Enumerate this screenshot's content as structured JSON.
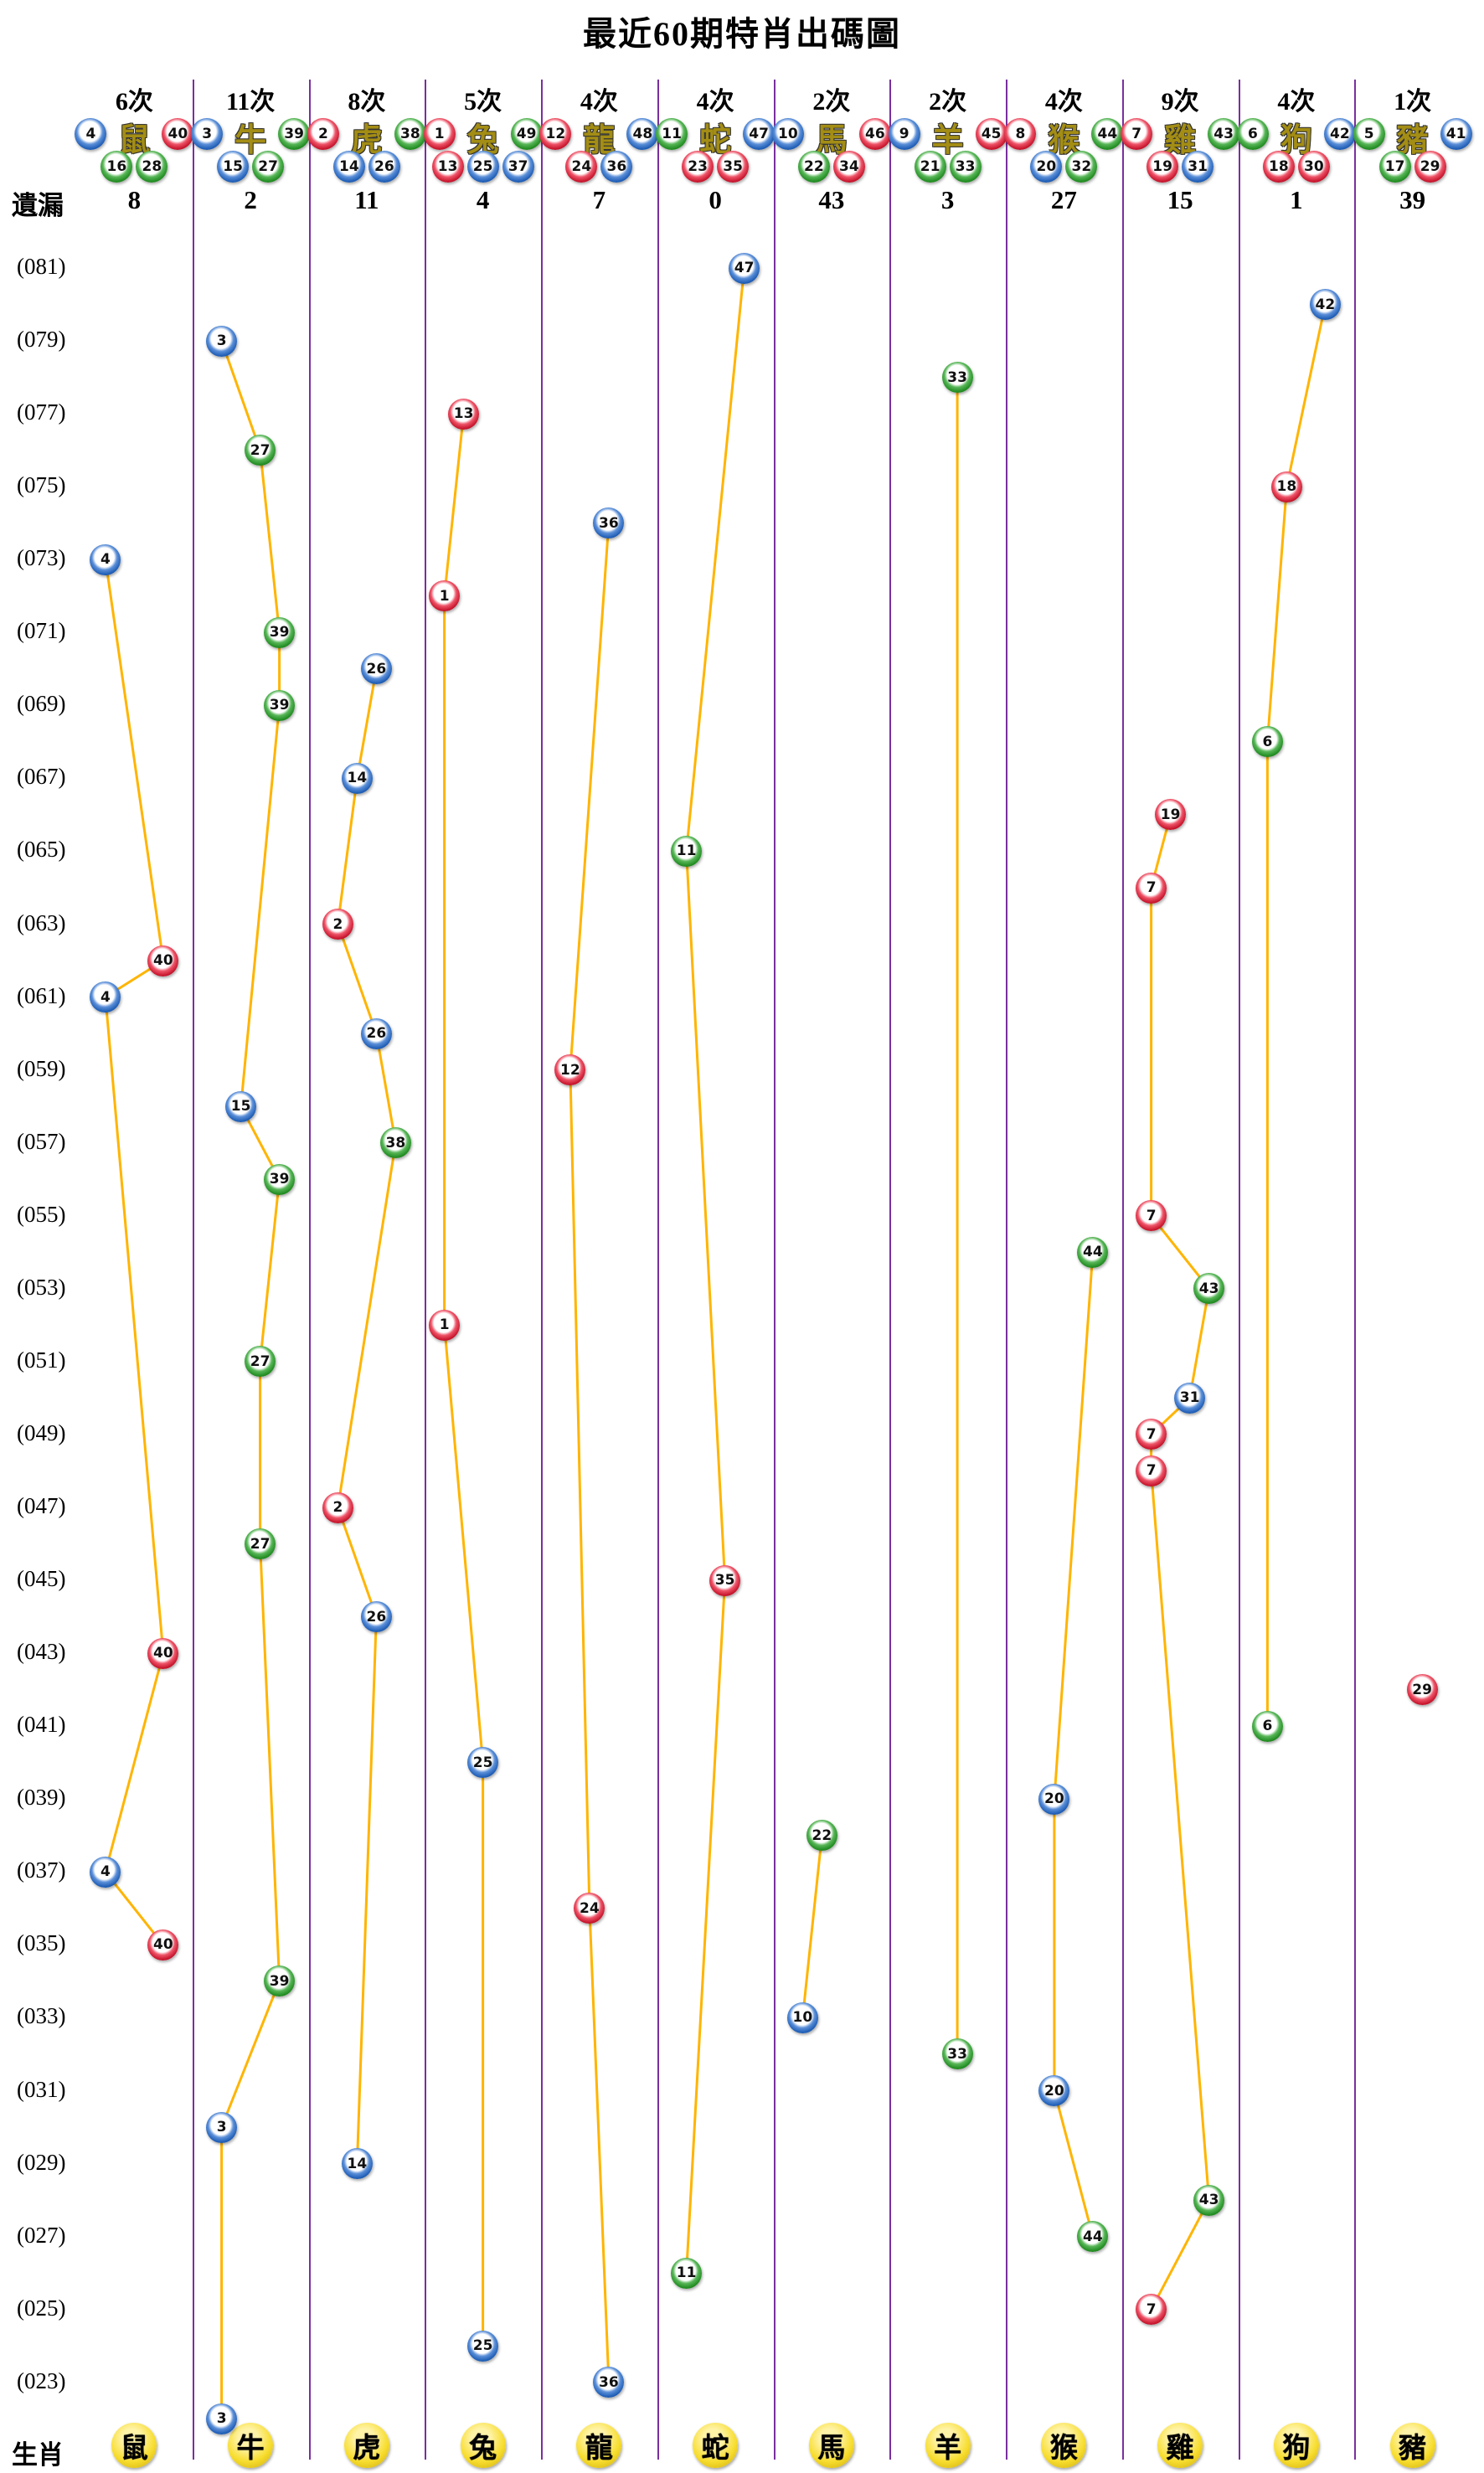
{
  "title": "最近60期特肖出碼圖",
  "labels": {
    "missing": "遺漏",
    "zodiac_row": "生肖"
  },
  "colors": {
    "separator": "#7a2f9e",
    "line": "#ffb400",
    "ball_red": "#c5122a",
    "ball_blue": "#1c5bb4",
    "ball_green": "#1f8a1f",
    "zodiac_ball_yellow": "#f7dd2e"
  },
  "columns": [
    {
      "zodiac": "鼠",
      "times": "6次",
      "count": 6,
      "missing": 8,
      "numbers": [
        {
          "n": 4,
          "c": "blue"
        },
        {
          "n": 40,
          "c": "red"
        },
        {
          "n": 16,
          "c": "green"
        },
        {
          "n": 28,
          "c": "green"
        }
      ]
    },
    {
      "zodiac": "牛",
      "times": "11次",
      "count": 11,
      "missing": 2,
      "numbers": [
        {
          "n": 3,
          "c": "blue"
        },
        {
          "n": 39,
          "c": "green"
        },
        {
          "n": 15,
          "c": "blue"
        },
        {
          "n": 27,
          "c": "green"
        }
      ]
    },
    {
      "zodiac": "虎",
      "times": "8次",
      "count": 8,
      "missing": 11,
      "numbers": [
        {
          "n": 2,
          "c": "red"
        },
        {
          "n": 38,
          "c": "green"
        },
        {
          "n": 14,
          "c": "blue"
        },
        {
          "n": 26,
          "c": "blue"
        }
      ]
    },
    {
      "zodiac": "兔",
      "times": "5次",
      "count": 5,
      "missing": 4,
      "numbers": [
        {
          "n": 1,
          "c": "red"
        },
        {
          "n": 49,
          "c": "green"
        },
        {
          "n": 13,
          "c": "red"
        },
        {
          "n": 25,
          "c": "blue"
        },
        {
          "n": 37,
          "c": "blue"
        }
      ]
    },
    {
      "zodiac": "龍",
      "times": "4次",
      "count": 4,
      "missing": 7,
      "numbers": [
        {
          "n": 12,
          "c": "red"
        },
        {
          "n": 48,
          "c": "blue"
        },
        {
          "n": 24,
          "c": "red"
        },
        {
          "n": 36,
          "c": "blue"
        }
      ]
    },
    {
      "zodiac": "蛇",
      "times": "4次",
      "count": 4,
      "missing": 0,
      "numbers": [
        {
          "n": 11,
          "c": "green"
        },
        {
          "n": 47,
          "c": "blue"
        },
        {
          "n": 23,
          "c": "red"
        },
        {
          "n": 35,
          "c": "red"
        }
      ]
    },
    {
      "zodiac": "馬",
      "times": "2次",
      "count": 2,
      "missing": 43,
      "numbers": [
        {
          "n": 10,
          "c": "blue"
        },
        {
          "n": 46,
          "c": "red"
        },
        {
          "n": 22,
          "c": "green"
        },
        {
          "n": 34,
          "c": "red"
        }
      ]
    },
    {
      "zodiac": "羊",
      "times": "2次",
      "count": 2,
      "missing": 3,
      "numbers": [
        {
          "n": 9,
          "c": "blue"
        },
        {
          "n": 45,
          "c": "red"
        },
        {
          "n": 21,
          "c": "green"
        },
        {
          "n": 33,
          "c": "green"
        }
      ]
    },
    {
      "zodiac": "猴",
      "times": "4次",
      "count": 4,
      "missing": 27,
      "numbers": [
        {
          "n": 8,
          "c": "red"
        },
        {
          "n": 44,
          "c": "green"
        },
        {
          "n": 20,
          "c": "blue"
        },
        {
          "n": 32,
          "c": "green"
        }
      ]
    },
    {
      "zodiac": "雞",
      "times": "9次",
      "count": 9,
      "missing": 15,
      "numbers": [
        {
          "n": 7,
          "c": "red"
        },
        {
          "n": 43,
          "c": "green"
        },
        {
          "n": 19,
          "c": "red"
        },
        {
          "n": 31,
          "c": "blue"
        }
      ]
    },
    {
      "zodiac": "狗",
      "times": "4次",
      "count": 4,
      "missing": 1,
      "numbers": [
        {
          "n": 6,
          "c": "green"
        },
        {
          "n": 42,
          "c": "blue"
        },
        {
          "n": 18,
          "c": "red"
        },
        {
          "n": 30,
          "c": "red"
        }
      ]
    },
    {
      "zodiac": "豬",
      "times": "1次",
      "count": 1,
      "missing": 39,
      "numbers": [
        {
          "n": 5,
          "c": "green"
        },
        {
          "n": 41,
          "c": "blue"
        },
        {
          "n": 17,
          "c": "green"
        },
        {
          "n": 29,
          "c": "red"
        }
      ]
    }
  ],
  "period_labels": [
    "(081)",
    "(079)",
    "(077)",
    "(075)",
    "(073)",
    "(071)",
    "(069)",
    "(067)",
    "(065)",
    "(063)",
    "(061)",
    "(059)",
    "(057)",
    "(055)",
    "(053)",
    "(051)",
    "(049)",
    "(047)",
    "(045)",
    "(043)",
    "(041)",
    "(039)",
    "(037)",
    "(035)",
    "(033)",
    "(031)",
    "(029)",
    "(027)",
    "(025)",
    "(023)"
  ],
  "chart_data": {
    "type": "scatter",
    "title": "最近60期特肖出碼圖",
    "x_categories": [
      "鼠",
      "牛",
      "虎",
      "兔",
      "龍",
      "蛇",
      "馬",
      "羊",
      "猴",
      "雞",
      "狗",
      "豬"
    ],
    "y_axis": {
      "top_period": 81,
      "bottom_period": 22,
      "tick_step": 2,
      "ticks_labeled_odd_only": true
    },
    "legend_position": "none",
    "grid": "vertical-column-separators-only",
    "connect_rule": "points of the same zodiac column are joined by orange lines in period order",
    "points": [
      {
        "period": 81,
        "zodiac": "蛇",
        "number": 47,
        "color": "blue"
      },
      {
        "period": 80,
        "zodiac": "狗",
        "number": 42,
        "color": "blue"
      },
      {
        "period": 79,
        "zodiac": "牛",
        "number": 3,
        "color": "blue"
      },
      {
        "period": 78,
        "zodiac": "羊",
        "number": 33,
        "color": "green"
      },
      {
        "period": 77,
        "zodiac": "兔",
        "number": 13,
        "color": "red"
      },
      {
        "period": 76,
        "zodiac": "牛",
        "number": 27,
        "color": "green"
      },
      {
        "period": 75,
        "zodiac": "狗",
        "number": 18,
        "color": "red"
      },
      {
        "period": 74,
        "zodiac": "龍",
        "number": 36,
        "color": "blue"
      },
      {
        "period": 73,
        "zodiac": "鼠",
        "number": 4,
        "color": "blue"
      },
      {
        "period": 72,
        "zodiac": "兔",
        "number": 1,
        "color": "red"
      },
      {
        "period": 71,
        "zodiac": "牛",
        "number": 39,
        "color": "green"
      },
      {
        "period": 70,
        "zodiac": "虎",
        "number": 26,
        "color": "blue"
      },
      {
        "period": 69,
        "zodiac": "牛",
        "number": 39,
        "color": "green"
      },
      {
        "period": 68,
        "zodiac": "狗",
        "number": 6,
        "color": "green"
      },
      {
        "period": 67,
        "zodiac": "虎",
        "number": 14,
        "color": "blue"
      },
      {
        "period": 66,
        "zodiac": "雞",
        "number": 19,
        "color": "red"
      },
      {
        "period": 65,
        "zodiac": "蛇",
        "number": 11,
        "color": "green"
      },
      {
        "period": 64,
        "zodiac": "雞",
        "number": 7,
        "color": "red"
      },
      {
        "period": 63,
        "zodiac": "虎",
        "number": 2,
        "color": "red"
      },
      {
        "period": 62,
        "zodiac": "鼠",
        "number": 40,
        "color": "red"
      },
      {
        "period": 61,
        "zodiac": "鼠",
        "number": 4,
        "color": "blue"
      },
      {
        "period": 60,
        "zodiac": "虎",
        "number": 26,
        "color": "blue"
      },
      {
        "period": 59,
        "zodiac": "龍",
        "number": 12,
        "color": "red"
      },
      {
        "period": 58,
        "zodiac": "牛",
        "number": 15,
        "color": "blue"
      },
      {
        "period": 57,
        "zodiac": "虎",
        "number": 38,
        "color": "green"
      },
      {
        "period": 56,
        "zodiac": "牛",
        "number": 39,
        "color": "green"
      },
      {
        "period": 55,
        "zodiac": "雞",
        "number": 7,
        "color": "red"
      },
      {
        "period": 54,
        "zodiac": "猴",
        "number": 44,
        "color": "green"
      },
      {
        "period": 53,
        "zodiac": "雞",
        "number": 43,
        "color": "green"
      },
      {
        "period": 52,
        "zodiac": "兔",
        "number": 1,
        "color": "red"
      },
      {
        "period": 51,
        "zodiac": "牛",
        "number": 27,
        "color": "green"
      },
      {
        "period": 50,
        "zodiac": "雞",
        "number": 31,
        "color": "blue"
      },
      {
        "period": 49,
        "zodiac": "雞",
        "number": 7,
        "color": "red"
      },
      {
        "period": 48,
        "zodiac": "雞",
        "number": 7,
        "color": "red"
      },
      {
        "period": 47,
        "zodiac": "虎",
        "number": 2,
        "color": "red"
      },
      {
        "period": 46,
        "zodiac": "牛",
        "number": 27,
        "color": "green"
      },
      {
        "period": 45,
        "zodiac": "蛇",
        "number": 35,
        "color": "red"
      },
      {
        "period": 44,
        "zodiac": "虎",
        "number": 26,
        "color": "blue"
      },
      {
        "period": 43,
        "zodiac": "鼠",
        "number": 40,
        "color": "red"
      },
      {
        "period": 42,
        "zodiac": "豬",
        "number": 29,
        "color": "red"
      },
      {
        "period": 41,
        "zodiac": "狗",
        "number": 6,
        "color": "green"
      },
      {
        "period": 40,
        "zodiac": "兔",
        "number": 25,
        "color": "blue"
      },
      {
        "period": 39,
        "zodiac": "猴",
        "number": 20,
        "color": "blue"
      },
      {
        "period": 38,
        "zodiac": "馬",
        "number": 22,
        "color": "green"
      },
      {
        "period": 37,
        "zodiac": "鼠",
        "number": 4,
        "color": "blue"
      },
      {
        "period": 36,
        "zodiac": "龍",
        "number": 24,
        "color": "red"
      },
      {
        "period": 35,
        "zodiac": "鼠",
        "number": 40,
        "color": "red"
      },
      {
        "period": 34,
        "zodiac": "牛",
        "number": 39,
        "color": "green"
      },
      {
        "period": 33,
        "zodiac": "馬",
        "number": 10,
        "color": "blue"
      },
      {
        "period": 32,
        "zodiac": "羊",
        "number": 33,
        "color": "green"
      },
      {
        "period": 31,
        "zodiac": "猴",
        "number": 20,
        "color": "blue"
      },
      {
        "period": 30,
        "zodiac": "牛",
        "number": 3,
        "color": "blue"
      },
      {
        "period": 29,
        "zodiac": "虎",
        "number": 14,
        "color": "blue"
      },
      {
        "period": 28,
        "zodiac": "雞",
        "number": 43,
        "color": "green"
      },
      {
        "period": 27,
        "zodiac": "猴",
        "number": 44,
        "color": "green"
      },
      {
        "period": 26,
        "zodiac": "蛇",
        "number": 11,
        "color": "green"
      },
      {
        "period": 25,
        "zodiac": "雞",
        "number": 7,
        "color": "red"
      },
      {
        "period": 24,
        "zodiac": "兔",
        "number": 25,
        "color": "blue"
      },
      {
        "period": 23,
        "zodiac": "龍",
        "number": 36,
        "color": "blue"
      },
      {
        "period": 22,
        "zodiac": "牛",
        "number": 3,
        "color": "blue"
      }
    ]
  }
}
